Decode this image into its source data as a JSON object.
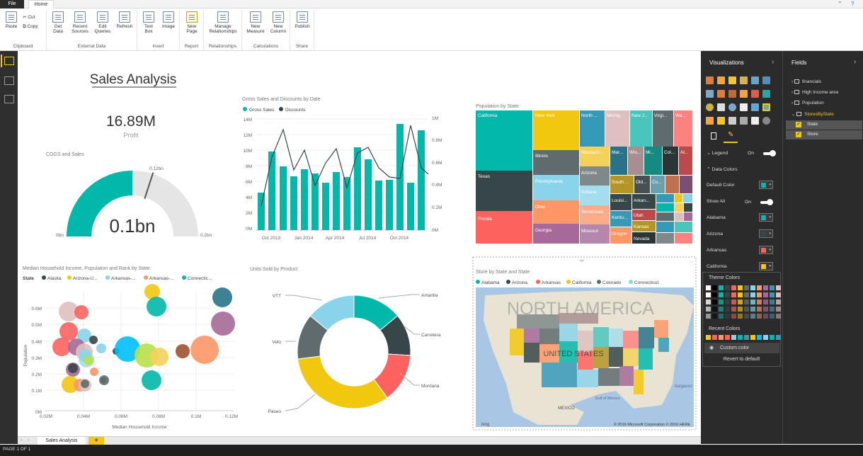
{
  "ribbon": {
    "tabs": [
      "File",
      "Home"
    ],
    "buttons": {
      "paste": "Paste",
      "cut": "Cut",
      "copy": "Copy",
      "get_data": "Get Data",
      "recent_sources": "Recent Sources",
      "edit_queries": "Edit Queries",
      "refresh": "Refresh",
      "text_box": "Text Box",
      "image": "Image",
      "new_page": "New Page",
      "manage_relationships": "Manage Relationships",
      "new_measure": "New Measure",
      "new_column": "New Column",
      "publish": "Publish"
    },
    "groups": {
      "clipboard": "Clipboard",
      "external_data": "External Data",
      "insert": "Insert",
      "report": "Report",
      "relationships": "Relationships",
      "calculations": "Calculations",
      "share": "Share"
    }
  },
  "canvas": {
    "report_title": "Sales Analysis",
    "card": {
      "value": "16.89M",
      "label": "Profit"
    },
    "gauge": {
      "title": "COGS and Sales",
      "value_label": "0.1bn",
      "min_label": "0bn",
      "max_label": "0.2bn",
      "target_label": "0.12bn",
      "value_fraction": 0.5,
      "target_fraction": 0.6
    },
    "combo": {
      "title": "Gross Sales and Discounts by Date",
      "legend": [
        {
          "name": "Gross Sales",
          "color": "#01b8aa"
        },
        {
          "name": "Discounts",
          "color": "#374649"
        }
      ],
      "y_left_ticks": [
        "14M",
        "12M",
        "10M",
        "8M",
        "6M",
        "4M",
        "2M",
        "0M"
      ],
      "y_right_ticks": [
        "1M",
        "0.8M",
        "0.6M",
        "0.4M",
        "0.2M",
        "0M"
      ],
      "x_ticks": [
        "Oct 2013",
        "Jan 2014",
        "Apr 2014",
        "Jul 2014",
        "Oct 2014"
      ]
    },
    "treemap": {
      "title": "Population by State",
      "labels": [
        "California",
        "Texas",
        "Florida",
        "New York",
        "Illinois",
        "Pennsylvania",
        "Ohio",
        "Georgia",
        "North ...",
        "Michig...",
        "New J...",
        "Virgi...",
        "Wa...",
        "Massach...",
        "Arizona",
        "Indiana",
        "Tennessee",
        "Missouri",
        "Mar...",
        "Wis...",
        "Mi...",
        "Col...",
        "Al...",
        "South ...",
        "Old...",
        "Co...",
        "Louisi...",
        "Arkan...",
        "Kentu...",
        "Utah",
        "Kansas",
        "Oregon",
        "Nevada"
      ]
    },
    "scatter": {
      "title": "Median Household Income, Population and Rank by State",
      "legend_title": "State",
      "legend": [
        {
          "name": "Alaska",
          "color": "#374649"
        },
        {
          "name": "Arizona-U...",
          "color": "#f2c80f"
        },
        {
          "name": "Arkansas-...",
          "color": "#8ad4eb"
        },
        {
          "name": "Arkansas-...",
          "color": "#fe9666"
        },
        {
          "name": "Connectic...",
          "color": "#01b8aa"
        }
      ],
      "xlabel": "Median Household Income",
      "ylabel": "Population",
      "x_ticks": [
        "0.02M",
        "0.04M",
        "0.06M",
        "0.08M",
        "0.1M",
        "0.12M"
      ],
      "y_ticks": [
        "0.6M",
        "0.5M",
        "0.4M",
        "0.3M",
        "0.2M",
        "0.1M",
        "0M"
      ]
    },
    "donut": {
      "title": "Units Sold by Product",
      "labels": [
        "Amarilla",
        "Carretera",
        "Montana",
        "Paseo",
        "Velo",
        "VTT"
      ]
    },
    "map": {
      "title": "Store by State and State",
      "legend": [
        {
          "name": "Alabama",
          "color": "#01b8aa"
        },
        {
          "name": "Arizona",
          "color": "#374649"
        },
        {
          "name": "Arkansas",
          "color": "#fd625e"
        },
        {
          "name": "California",
          "color": "#f2c80f"
        },
        {
          "name": "Colorado",
          "color": "#5f6b6d"
        },
        {
          "name": "Connecticut",
          "color": "#8ad4eb"
        }
      ],
      "labels": {
        "continent": "NORTH AMERICA",
        "country": "UNITED STATES",
        "mexico": "MEXICO",
        "gulf": "Gulf of Mexico",
        "sea": "Sargasso",
        "bing": "bing",
        "copyright": "© 2016 Microsoft Corporation  © 2016 HERE"
      }
    }
  },
  "viz_pane": {
    "title": "Visualizations",
    "legend_label": "Legend",
    "legend_state": "On",
    "data_colors_label": "Data Colors",
    "default_color_label": "Default Color",
    "show_all_label": "Show All",
    "show_all_state": "On",
    "items": [
      {
        "name": "Alabama",
        "color": "#01b8aa"
      },
      {
        "name": "Arizona",
        "color": "#374649"
      },
      {
        "name": "Arkansas",
        "color": "#fd625e"
      },
      {
        "name": "California",
        "color": "#f2c80f"
      }
    ],
    "palette": {
      "theme_label": "Theme Colors",
      "recent_label": "Recent Colors",
      "custom_label": "Custom color",
      "revert_label": "Revert to default"
    }
  },
  "fields_pane": {
    "title": "Fields",
    "tables": [
      "financials",
      "High Income area",
      "Population",
      "StoresByState"
    ],
    "fields": [
      "State",
      "Store"
    ]
  },
  "page": {
    "tab": "Sales Analysis",
    "add": "+",
    "count": "PAGE 1 OF 1"
  }
}
